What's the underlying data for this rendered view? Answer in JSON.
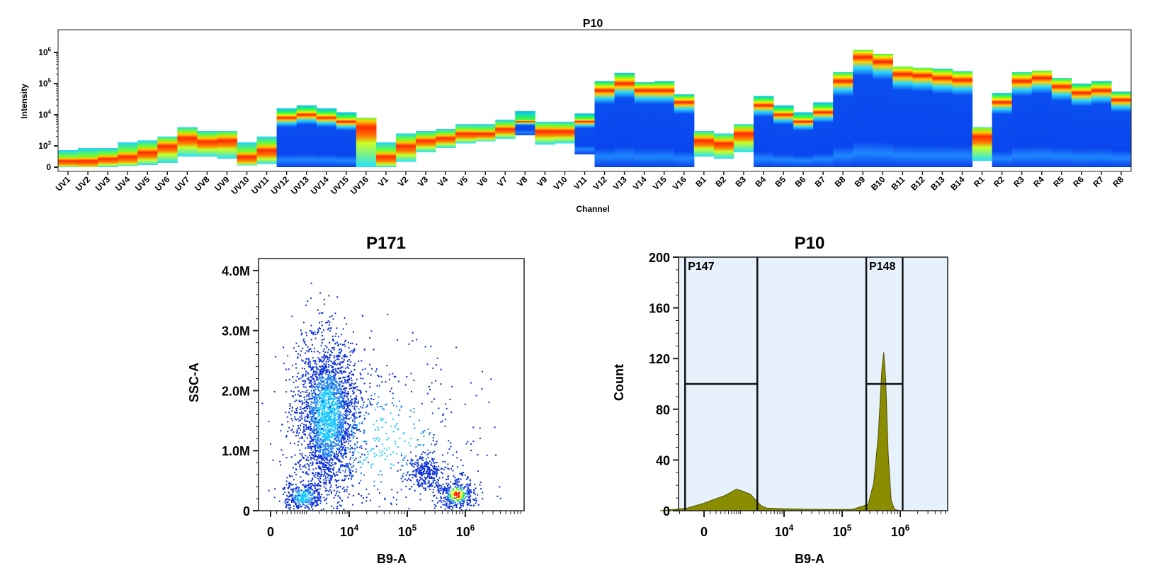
{
  "chart_data": [
    {
      "type": "heatmap",
      "title": "P10",
      "xlabel": "Channel",
      "ylabel": "Intensity",
      "yscale": "log",
      "yticks": [
        {
          "label": "0",
          "sup": ""
        },
        {
          "label": "10",
          "sup": "3"
        },
        {
          "label": "10",
          "sup": "4"
        },
        {
          "label": "10",
          "sup": "5"
        },
        {
          "label": "10",
          "sup": "6"
        }
      ],
      "channels": [
        {
          "name": "UV1",
          "low": 0,
          "peak": 300,
          "high": 800
        },
        {
          "name": "UV2",
          "low": 0,
          "peak": 300,
          "high": 900
        },
        {
          "name": "UV3",
          "low": 0,
          "peak": 400,
          "high": 900
        },
        {
          "name": "UV4",
          "low": 50,
          "peak": 500,
          "high": 1300
        },
        {
          "name": "UV5",
          "low": 100,
          "peak": 700,
          "high": 1500
        },
        {
          "name": "UV6",
          "low": 200,
          "peak": 1000,
          "high": 2000
        },
        {
          "name": "UV7",
          "low": 500,
          "peak": 1800,
          "high": 4000
        },
        {
          "name": "UV8",
          "low": 500,
          "peak": 1400,
          "high": 3000
        },
        {
          "name": "UV9",
          "low": 400,
          "peak": 1500,
          "high": 3000
        },
        {
          "name": "UV10",
          "low": 80,
          "peak": 500,
          "high": 1300
        },
        {
          "name": "UV11",
          "low": 150,
          "peak": 800,
          "high": 2000
        },
        {
          "name": "UV12",
          "low": 0,
          "peak": 8000,
          "high": 16000
        },
        {
          "name": "UV13",
          "low": 0,
          "peak": 10000,
          "high": 20000
        },
        {
          "name": "UV14",
          "low": 0,
          "peak": 8000,
          "high": 16000
        },
        {
          "name": "UV15",
          "low": 0,
          "peak": 6000,
          "high": 12000
        },
        {
          "name": "UV16",
          "low": 0,
          "peak": 4000,
          "high": 8000
        },
        {
          "name": "V1",
          "low": 0,
          "peak": 500,
          "high": 1300
        },
        {
          "name": "V2",
          "low": 250,
          "peak": 1000,
          "high": 2500
        },
        {
          "name": "V3",
          "low": 700,
          "peak": 1500,
          "high": 3000
        },
        {
          "name": "V4",
          "low": 900,
          "peak": 1800,
          "high": 3500
        },
        {
          "name": "V5",
          "low": 1200,
          "peak": 2500,
          "high": 5000
        },
        {
          "name": "V6",
          "low": 1400,
          "peak": 2500,
          "high": 5000
        },
        {
          "name": "V7",
          "low": 1700,
          "peak": 3500,
          "high": 7000
        },
        {
          "name": "V8",
          "low": 2200,
          "peak": 6000,
          "high": 13000
        },
        {
          "name": "V9",
          "low": 1100,
          "peak": 3000,
          "high": 6000
        },
        {
          "name": "V10",
          "low": 1200,
          "peak": 3000,
          "high": 6000
        },
        {
          "name": "V11",
          "low": 600,
          "peak": 6000,
          "high": 11000
        },
        {
          "name": "V12",
          "low": 0,
          "peak": 60000,
          "high": 120000
        },
        {
          "name": "V13",
          "low": 0,
          "peak": 100000,
          "high": 220000
        },
        {
          "name": "V14",
          "low": 0,
          "peak": 60000,
          "high": 110000
        },
        {
          "name": "V15",
          "low": 0,
          "peak": 60000,
          "high": 120000
        },
        {
          "name": "V16",
          "low": 0,
          "peak": 25000,
          "high": 45000
        },
        {
          "name": "B1",
          "low": 500,
          "peak": 1500,
          "high": 3000
        },
        {
          "name": "B2",
          "low": 400,
          "peak": 1200,
          "high": 2500
        },
        {
          "name": "B3",
          "low": 700,
          "peak": 2500,
          "high": 5000
        },
        {
          "name": "B4",
          "low": 0,
          "peak": 20000,
          "high": 40000
        },
        {
          "name": "B5",
          "low": 0,
          "peak": 10000,
          "high": 20000
        },
        {
          "name": "B6",
          "low": 0,
          "peak": 6000,
          "high": 12000
        },
        {
          "name": "B7",
          "low": 0,
          "peak": 12000,
          "high": 25000
        },
        {
          "name": "B8",
          "low": 0,
          "peak": 120000,
          "high": 230000
        },
        {
          "name": "B9",
          "low": 0,
          "peak": 700000,
          "high": 1200000
        },
        {
          "name": "B10",
          "low": 0,
          "peak": 500000,
          "high": 900000
        },
        {
          "name": "B11",
          "low": 0,
          "peak": 200000,
          "high": 350000
        },
        {
          "name": "B12",
          "low": 0,
          "peak": 180000,
          "high": 320000
        },
        {
          "name": "B13",
          "low": 0,
          "peak": 150000,
          "high": 300000
        },
        {
          "name": "B14",
          "low": 0,
          "peak": 130000,
          "high": 250000
        },
        {
          "name": "R1",
          "low": 300,
          "peak": 2000,
          "high": 4000
        },
        {
          "name": "R2",
          "low": 0,
          "peak": 25000,
          "high": 50000
        },
        {
          "name": "R3",
          "low": 0,
          "peak": 120000,
          "high": 230000
        },
        {
          "name": "R4",
          "low": 0,
          "peak": 150000,
          "high": 260000
        },
        {
          "name": "R5",
          "low": 0,
          "peak": 80000,
          "high": 150000
        },
        {
          "name": "R6",
          "low": 0,
          "peak": 50000,
          "high": 100000
        },
        {
          "name": "R7",
          "low": 0,
          "peak": 60000,
          "high": 120000
        },
        {
          "name": "R8",
          "low": 0,
          "peak": 30000,
          "high": 55000
        }
      ]
    },
    {
      "type": "scatter",
      "title": "P171",
      "xlabel": "B9-A",
      "ylabel": "SSC-A",
      "xscale": "biexponential",
      "yticks": [
        "0",
        "1.0M",
        "2.0M",
        "3.0M",
        "4.0M"
      ],
      "ytick_values": [
        0,
        1000000,
        2000000,
        3000000,
        4000000
      ],
      "ylim": [
        0,
        4200000
      ],
      "xticks": [
        {
          "label": "0",
          "sup": ""
        },
        {
          "label": "10",
          "sup": "4"
        },
        {
          "label": "10",
          "sup": "5"
        },
        {
          "label": "10",
          "sup": "6"
        }
      ],
      "xlim": [
        -2000,
        3000000
      ],
      "populations": [
        {
          "x": 3000,
          "y": 1600000,
          "count": 2600
        },
        {
          "x": 800,
          "y": 250000,
          "count": 350
        },
        {
          "x": 200000,
          "y": 650000,
          "count": 300
        },
        {
          "x": 700000,
          "y": 280000,
          "count": 400
        },
        {
          "x": 30000,
          "y": 1200000,
          "count": 500
        }
      ]
    },
    {
      "type": "area",
      "title": "P10",
      "xlabel": "B9-A",
      "ylabel": "Count",
      "xscale": "biexponential",
      "yticks": [
        "0",
        "40",
        "80",
        "120",
        "160",
        "200"
      ],
      "ytick_values": [
        0,
        40,
        80,
        120,
        160,
        200
      ],
      "ylim": [
        0,
        200
      ],
      "xticks": [
        {
          "label": "0",
          "sup": ""
        },
        {
          "label": "10",
          "sup": "4"
        },
        {
          "label": "10",
          "sup": "5"
        },
        {
          "label": "10",
          "sup": "6"
        }
      ],
      "xlim": [
        -2000,
        3000000
      ],
      "histogram": [
        {
          "x": -1500,
          "count": 0
        },
        {
          "x": -300,
          "count": 2
        },
        {
          "x": 0,
          "count": 6
        },
        {
          "x": 400,
          "count": 12
        },
        {
          "x": 800,
          "count": 17
        },
        {
          "x": 1200,
          "count": 15
        },
        {
          "x": 1700,
          "count": 13
        },
        {
          "x": 2300,
          "count": 8
        },
        {
          "x": 3000,
          "count": 4
        },
        {
          "x": 4000,
          "count": 2
        },
        {
          "x": 10000,
          "count": 1.5
        },
        {
          "x": 40000,
          "count": 1
        },
        {
          "x": 150000,
          "count": 1
        },
        {
          "x": 280000,
          "count": 5
        },
        {
          "x": 350000,
          "count": 22
        },
        {
          "x": 420000,
          "count": 60
        },
        {
          "x": 480000,
          "count": 110
        },
        {
          "x": 520000,
          "count": 125
        },
        {
          "x": 560000,
          "count": 105
        },
        {
          "x": 620000,
          "count": 45
        },
        {
          "x": 700000,
          "count": 8
        },
        {
          "x": 800000,
          "count": 1
        },
        {
          "x": 1000000,
          "count": 0
        }
      ],
      "gates": [
        {
          "name": "P147",
          "x_from": -350,
          "x_to": 2450,
          "level": 100
        },
        {
          "name": "P148",
          "x_from": 260000,
          "x_to": 1100000,
          "level": 100
        }
      ],
      "colors": {
        "fill": "#8b8d00",
        "stroke": "#4f5000",
        "background": "#e6f1fb"
      }
    }
  ]
}
